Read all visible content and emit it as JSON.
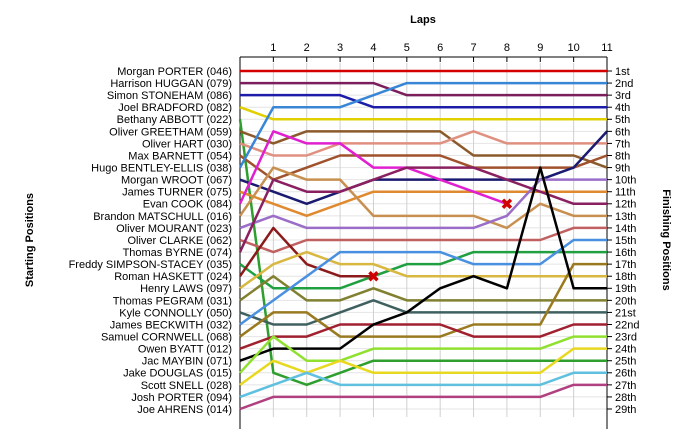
{
  "chart_data": {
    "type": "lap",
    "title": "Laps",
    "y_label": "Starting Positions",
    "y2_label": "Finishing Positions",
    "x": [
      0,
      1,
      2,
      3,
      4,
      5,
      6,
      7,
      8,
      9,
      10,
      11
    ],
    "xlim": [
      0,
      11
    ],
    "xticks": [
      1,
      2,
      3,
      4,
      5,
      6,
      7,
      8,
      9,
      10,
      11
    ],
    "ylim": [
      1,
      29
    ],
    "yticks": [
      {
        "value": 1,
        "label": "1st"
      },
      {
        "value": 2,
        "label": "2nd"
      },
      {
        "value": 3,
        "label": "3rd"
      },
      {
        "value": 4,
        "label": "4th"
      },
      {
        "value": 5,
        "label": "5th"
      },
      {
        "value": 6,
        "label": "6th"
      },
      {
        "value": 7,
        "label": "7th"
      },
      {
        "value": 8,
        "label": "8th"
      },
      {
        "value": 9,
        "label": "9th"
      },
      {
        "value": 10,
        "label": "10th"
      },
      {
        "value": 11,
        "label": "11th"
      },
      {
        "value": 12,
        "label": "12th"
      },
      {
        "value": 13,
        "label": "13th"
      },
      {
        "value": 14,
        "label": "14th"
      },
      {
        "value": 15,
        "label": "15th"
      },
      {
        "value": 16,
        "label": "16th"
      },
      {
        "value": 17,
        "label": "17th"
      },
      {
        "value": 18,
        "label": "18th"
      },
      {
        "value": 19,
        "label": "19th"
      },
      {
        "value": 20,
        "label": "20th"
      },
      {
        "value": 21,
        "label": "21st"
      },
      {
        "value": 22,
        "label": "22nd"
      },
      {
        "value": 23,
        "label": "23rd"
      },
      {
        "value": 24,
        "label": "24th"
      },
      {
        "value": 25,
        "label": "25th"
      },
      {
        "value": 26,
        "label": "26th"
      },
      {
        "value": 27,
        "label": "27th"
      },
      {
        "value": 28,
        "label": "28th"
      },
      {
        "value": 29,
        "label": "29th"
      }
    ],
    "grid": true,
    "series": [
      {
        "name": "Morgan PORTER (046)",
        "color": "#d40000",
        "values": [
          1,
          1,
          1,
          1,
          1,
          1,
          1,
          1,
          1,
          1,
          1,
          1
        ]
      },
      {
        "name": "Harrison HUGGAN (079)",
        "color": "#7a1f5c",
        "values": [
          2,
          2,
          2,
          2,
          2,
          3,
          3,
          3,
          3,
          3,
          3,
          3
        ]
      },
      {
        "name": "Simon STONEHAM (086)",
        "color": "#1c1ca8",
        "values": [
          3,
          3,
          3,
          3,
          4,
          4,
          4,
          4,
          4,
          4,
          4,
          4
        ]
      },
      {
        "name": "Joel BRADFORD (082)",
        "color": "#e0d000",
        "values": [
          4,
          5,
          5,
          5,
          5,
          5,
          5,
          5,
          5,
          5,
          5,
          5
        ]
      },
      {
        "name": "Bethany ABBOTT (022)",
        "color": "#2e9e2e",
        "values": [
          5,
          26,
          27,
          26,
          25,
          25,
          25,
          25,
          25,
          25,
          25,
          25
        ]
      },
      {
        "name": "Oliver GREETHAM (059)",
        "color": "#8b5a2b",
        "values": [
          6,
          7,
          6,
          6,
          6,
          6,
          6,
          8,
          8,
          8,
          8,
          9
        ]
      },
      {
        "name": "Oliver HART (030)",
        "color": "#e09080",
        "values": [
          7,
          8,
          8,
          7,
          7,
          7,
          7,
          6,
          7,
          7,
          7,
          7
        ]
      },
      {
        "name": "Max BARNETT (054)",
        "color": "#a0522d",
        "values": [
          8,
          10,
          9,
          8,
          8,
          8,
          8,
          9,
          9,
          9,
          9,
          8
        ]
      },
      {
        "name": "Hugo BENTLEY-ELLIS (038)",
        "color": "#3a86d6",
        "values": [
          9,
          4,
          4,
          4,
          3,
          2,
          2,
          2,
          2,
          2,
          2,
          2
        ]
      },
      {
        "name": "Morgan WROOT (067)",
        "color": "#1a1a70",
        "values": [
          10,
          11,
          12,
          11,
          10,
          10,
          10,
          10,
          10,
          10,
          9,
          6
        ]
      },
      {
        "name": "James TURNER (075)",
        "color": "#e08a30",
        "values": [
          11,
          12,
          13,
          12,
          11,
          11,
          11,
          11,
          11,
          11,
          11,
          11
        ]
      },
      {
        "name": "Evan COOK (084)",
        "color": "#e020d0",
        "values": [
          12,
          6,
          7,
          7,
          9,
          9,
          10,
          11,
          12,
          null,
          null,
          null
        ],
        "crash": true
      },
      {
        "name": "Brandon MATSCHULL (016)",
        "color": "#c89050",
        "values": [
          13,
          9,
          10,
          10,
          13,
          13,
          13,
          13,
          14,
          12,
          13,
          13
        ]
      },
      {
        "name": "Oliver MOURANT (023)",
        "color": "#9a6ec8",
        "values": [
          14,
          13,
          14,
          14,
          14,
          14,
          14,
          14,
          13,
          10,
          10,
          10
        ]
      },
      {
        "name": "Oliver CLARKE (062)",
        "color": "#c06060",
        "values": [
          15,
          16,
          15,
          15,
          15,
          15,
          15,
          15,
          15,
          15,
          14,
          14
        ]
      },
      {
        "name": "Thomas BYRNE (074)",
        "color": "#8a2060",
        "values": [
          16,
          10,
          11,
          11,
          10,
          9,
          9,
          9,
          10,
          11,
          12,
          12
        ]
      },
      {
        "name": "Freddy SIMPSON-STACEY (035)",
        "color": "#20a040",
        "values": [
          17,
          19,
          19,
          19,
          18,
          17,
          17,
          16,
          16,
          16,
          16,
          16
        ]
      },
      {
        "name": "Roman HASKETT (024)",
        "color": "#8b1a1a",
        "values": [
          18,
          14,
          17,
          18,
          18,
          null,
          null,
          null,
          null,
          null,
          null,
          null
        ],
        "crash": true
      },
      {
        "name": "Henry LAWS (097)",
        "color": "#d8b840",
        "values": [
          19,
          17,
          16,
          17,
          17,
          18,
          18,
          18,
          18,
          18,
          18,
          18
        ]
      },
      {
        "name": "Thomas PEGRAM (031)",
        "color": "#808030",
        "values": [
          20,
          18,
          20,
          20,
          19,
          20,
          20,
          20,
          20,
          20,
          20,
          20
        ]
      },
      {
        "name": "Kyle CONNOLLY (050)",
        "color": "#406060",
        "values": [
          21,
          22,
          22,
          21,
          20,
          21,
          21,
          21,
          21,
          21,
          21,
          21
        ]
      },
      {
        "name": "James BECKWITH (032)",
        "color": "#4a90e0",
        "values": [
          22,
          20,
          18,
          16,
          16,
          16,
          16,
          17,
          17,
          17,
          15,
          15
        ]
      },
      {
        "name": "Samuel CORNWELL (068)",
        "color": "#9a7a20",
        "values": [
          23,
          21,
          21,
          23,
          23,
          23,
          23,
          22,
          22,
          22,
          17,
          17
        ]
      },
      {
        "name": "Owen BYATT (012)",
        "color": "#a02030",
        "values": [
          24,
          23,
          23,
          22,
          22,
          22,
          22,
          23,
          23,
          23,
          22,
          22
        ]
      },
      {
        "name": "Jac MAYBIN (071)",
        "color": "#000000",
        "values": [
          25,
          24,
          24,
          24,
          22,
          21,
          19,
          18,
          19,
          9,
          19,
          19
        ]
      },
      {
        "name": "Jake DOUGLAS (015)",
        "color": "#90e030",
        "values": [
          26,
          23,
          25,
          25,
          24,
          24,
          24,
          24,
          24,
          24,
          23,
          23
        ]
      },
      {
        "name": "Scott SNELL (028)",
        "color": "#e8d820",
        "values": [
          27,
          25,
          26,
          25,
          26,
          26,
          26,
          26,
          26,
          26,
          24,
          24
        ]
      },
      {
        "name": "Josh PORTER (094)",
        "color": "#60c0e0",
        "values": [
          28,
          27,
          26,
          27,
          27,
          27,
          27,
          27,
          27,
          27,
          26,
          26
        ]
      },
      {
        "name": "Joe AHRENS (014)",
        "color": "#b04080",
        "values": [
          29,
          28,
          28,
          28,
          28,
          28,
          28,
          28,
          28,
          28,
          27,
          27
        ]
      }
    ]
  }
}
